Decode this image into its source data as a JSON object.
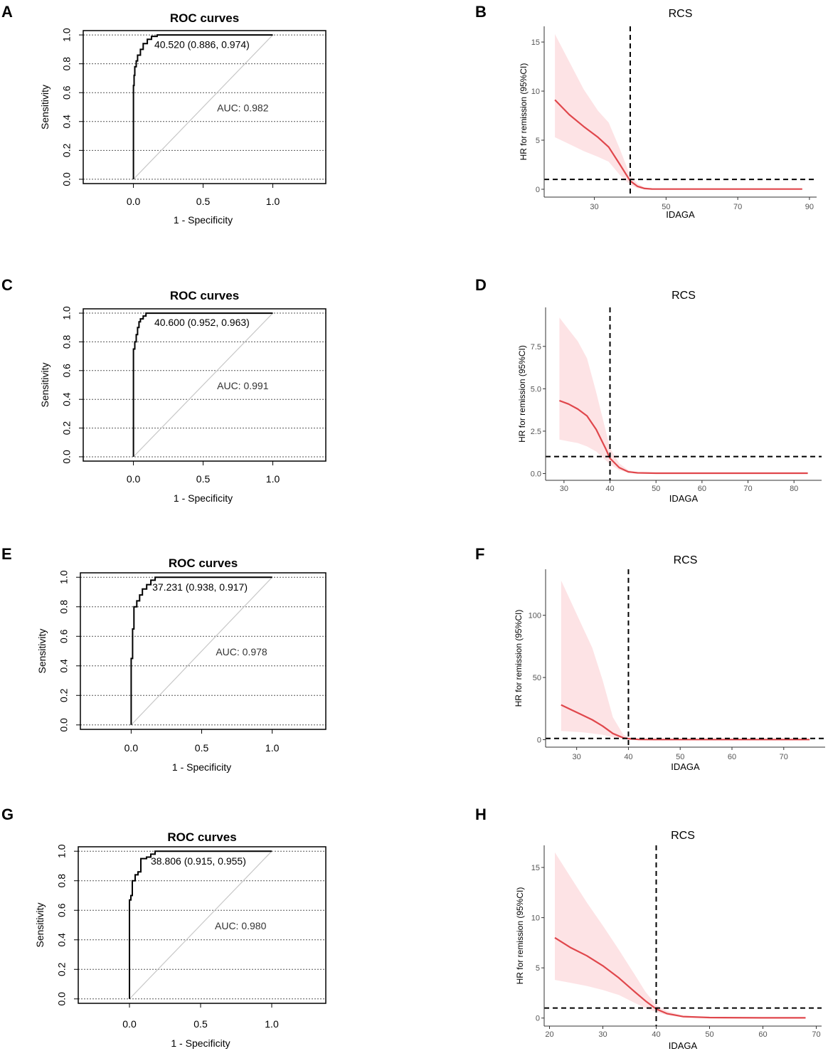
{
  "figure": {
    "panel_letters": [
      "A",
      "B",
      "C",
      "D",
      "E",
      "F",
      "G",
      "H"
    ]
  },
  "colors": {
    "roc_line": "#000000",
    "diagonal": "#c8c8c8",
    "grid": "#555555",
    "rcs_line": "#e0474c",
    "rcs_band": "#fde3e5",
    "rcs_axis_text": "#555555",
    "ref_line": "#000000"
  },
  "chart_data": [
    {
      "panel": "A",
      "type": "line",
      "subtype": "roc",
      "title": "ROC curves",
      "xlabel": "1 - Specificity",
      "ylabel": "Sensitivity",
      "xlim": [
        -0.36,
        1.38
      ],
      "ylim": [
        -0.03,
        1.03
      ],
      "x_ticks": [
        0.0,
        0.5,
        1.0
      ],
      "x_tick_labels": [
        "0.0",
        "0.5",
        "1.0"
      ],
      "y_ticks": [
        0.0,
        0.2,
        0.4,
        0.6,
        0.8,
        1.0
      ],
      "y_tick_labels": [
        "0.0",
        "0.2",
        "0.4",
        "0.6",
        "0.8",
        "1.0"
      ],
      "grid": "horizontal dotted",
      "curve": {
        "x": [
          0,
          0,
          0.005,
          0.005,
          0.01,
          0.01,
          0.02,
          0.02,
          0.03,
          0.03,
          0.05,
          0.05,
          0.07,
          0.07,
          0.1,
          0.1,
          0.13,
          0.13,
          0.17,
          0.17,
          1.0
        ],
        "y": [
          0,
          0.65,
          0.65,
          0.72,
          0.72,
          0.78,
          0.78,
          0.82,
          0.82,
          0.86,
          0.86,
          0.9,
          0.9,
          0.94,
          0.94,
          0.97,
          0.97,
          0.99,
          0.99,
          1.0,
          1.0
        ]
      },
      "cutoff_label": "40.520 (0.886, 0.974)",
      "auc_label": "AUC: 0.982"
    },
    {
      "panel": "B",
      "type": "line",
      "subtype": "rcs",
      "title": "RCS",
      "xlabel": "IDAGA",
      "ylabel": "HR for remission (95%CI)",
      "xlim": [
        16,
        92
      ],
      "ylim": [
        -0.8,
        16.6
      ],
      "x_ticks": [
        30,
        50,
        70,
        90
      ],
      "x_tick_labels": [
        "30",
        "50",
        "70",
        "90"
      ],
      "y_ticks": [
        0,
        5,
        10,
        15
      ],
      "y_tick_labels": [
        "0",
        "5",
        "10",
        "15"
      ],
      "x": [
        19,
        23,
        27,
        31,
        34,
        37,
        40,
        42,
        44,
        46,
        50,
        55,
        60,
        70,
        80,
        88
      ],
      "hr": [
        9.1,
        7.6,
        6.4,
        5.3,
        4.3,
        2.6,
        0.85,
        0.3,
        0.08,
        0.03,
        0.02,
        0.02,
        0.02,
        0.02,
        0.02,
        0.02
      ],
      "lower": [
        5.3,
        4.6,
        3.9,
        3.3,
        2.8,
        1.5,
        0.45,
        0.1,
        0.02,
        0.01,
        0.01,
        0.01,
        0.01,
        0.01,
        0.01,
        0.01
      ],
      "upper": [
        15.8,
        13.0,
        10.2,
        8.0,
        6.8,
        4.2,
        1.4,
        0.6,
        0.2,
        0.08,
        0.05,
        0.05,
        0.05,
        0.05,
        0.05,
        0.05
      ],
      "vline_x": 40,
      "hline_y": 1
    },
    {
      "panel": "C",
      "type": "line",
      "subtype": "roc",
      "title": "ROC curves",
      "xlabel": "1 - Specificity",
      "ylabel": "Sensitivity",
      "xlim": [
        -0.36,
        1.38
      ],
      "ylim": [
        -0.03,
        1.03
      ],
      "x_ticks": [
        0.0,
        0.5,
        1.0
      ],
      "x_tick_labels": [
        "0.0",
        "0.5",
        "1.0"
      ],
      "y_ticks": [
        0.0,
        0.2,
        0.4,
        0.6,
        0.8,
        1.0
      ],
      "y_tick_labels": [
        "0.0",
        "0.2",
        "0.4",
        "0.6",
        "0.8",
        "1.0"
      ],
      "grid": "horizontal dotted",
      "curve": {
        "x": [
          0,
          0,
          0.01,
          0.01,
          0.02,
          0.02,
          0.03,
          0.03,
          0.04,
          0.04,
          0.05,
          0.05,
          0.07,
          0.07,
          0.09,
          0.09,
          1.0
        ],
        "y": [
          0,
          0.75,
          0.75,
          0.8,
          0.8,
          0.85,
          0.85,
          0.9,
          0.9,
          0.94,
          0.94,
          0.96,
          0.96,
          0.98,
          0.98,
          1.0,
          1.0
        ]
      },
      "cutoff_label": "40.600 (0.952, 0.963)",
      "auc_label": "AUC: 0.991"
    },
    {
      "panel": "D",
      "type": "line",
      "subtype": "rcs",
      "title": "RCS",
      "xlabel": "IDAGA",
      "ylabel": "HR for remission (95%CI)",
      "xlim": [
        26,
        86
      ],
      "ylim": [
        -0.4,
        9.8
      ],
      "x_ticks": [
        30,
        40,
        50,
        60,
        70,
        80
      ],
      "x_tick_labels": [
        "30",
        "40",
        "50",
        "60",
        "70",
        "80"
      ],
      "y_ticks": [
        0,
        2.5,
        5,
        7.5
      ],
      "y_tick_labels": [
        "0.0",
        "2.5",
        "5.0",
        "7.5"
      ],
      "x": [
        29,
        31,
        33,
        35,
        37,
        39,
        40,
        42,
        44,
        46,
        50,
        60,
        70,
        80,
        83
      ],
      "hr": [
        4.3,
        4.1,
        3.8,
        3.4,
        2.6,
        1.5,
        0.9,
        0.35,
        0.1,
        0.04,
        0.02,
        0.02,
        0.02,
        0.02,
        0.02
      ],
      "lower": [
        2.0,
        1.9,
        1.8,
        1.6,
        1.3,
        0.8,
        0.55,
        0.2,
        0.05,
        0.02,
        0.01,
        0.01,
        0.01,
        0.01,
        0.01
      ],
      "upper": [
        9.2,
        8.5,
        7.8,
        6.8,
        4.8,
        2.6,
        1.5,
        0.6,
        0.2,
        0.08,
        0.05,
        0.05,
        0.05,
        0.05,
        0.05
      ],
      "vline_x": 40,
      "hline_y": 1
    },
    {
      "panel": "E",
      "type": "line",
      "subtype": "roc",
      "title": "ROC curves",
      "xlabel": "1 - Specificity",
      "ylabel": "Sensitivity",
      "xlim": [
        -0.36,
        1.38
      ],
      "ylim": [
        -0.03,
        1.03
      ],
      "x_ticks": [
        0.0,
        0.5,
        1.0
      ],
      "x_tick_labels": [
        "0.0",
        "0.5",
        "1.0"
      ],
      "y_ticks": [
        0.0,
        0.2,
        0.4,
        0.6,
        0.8,
        1.0
      ],
      "y_tick_labels": [
        "0.0",
        "0.2",
        "0.4",
        "0.6",
        "0.8",
        "1.0"
      ],
      "grid": "horizontal dotted",
      "curve": {
        "x": [
          0,
          0,
          0.01,
          0.01,
          0.02,
          0.02,
          0.04,
          0.04,
          0.06,
          0.06,
          0.08,
          0.08,
          0.11,
          0.11,
          0.14,
          0.14,
          0.17,
          0.17,
          1.0
        ],
        "y": [
          0,
          0.45,
          0.45,
          0.65,
          0.65,
          0.8,
          0.8,
          0.84,
          0.84,
          0.88,
          0.88,
          0.92,
          0.92,
          0.95,
          0.95,
          0.98,
          0.98,
          1.0,
          1.0
        ]
      },
      "cutoff_label": "37.231 (0.938, 0.917)",
      "auc_label": "AUC: 0.978"
    },
    {
      "panel": "F",
      "type": "line",
      "subtype": "rcs",
      "title": "RCS",
      "xlabel": "IDAGA",
      "ylabel": "HR for remission (95%CI)",
      "xlim": [
        24,
        78
      ],
      "ylim": [
        -6,
        137
      ],
      "x_ticks": [
        30,
        40,
        50,
        60,
        70
      ],
      "x_tick_labels": [
        "30",
        "40",
        "50",
        "60",
        "70"
      ],
      "y_ticks": [
        0,
        50,
        100
      ],
      "y_tick_labels": [
        "0",
        "50",
        "100"
      ],
      "x": [
        27,
        29,
        31,
        33,
        35,
        37,
        39,
        40,
        42,
        45,
        50,
        60,
        70,
        75
      ],
      "hr": [
        28,
        24,
        20,
        16,
        11,
        5,
        1.5,
        0.8,
        0.2,
        0.1,
        0.1,
        0.1,
        0.1,
        0.1
      ],
      "lower": [
        7,
        6.5,
        6,
        5,
        4,
        2,
        0.8,
        0.4,
        0.1,
        0.05,
        0.05,
        0.05,
        0.05,
        0.05
      ],
      "upper": [
        128,
        110,
        92,
        74,
        48,
        18,
        4,
        2,
        0.5,
        0.2,
        0.2,
        0.2,
        0.2,
        0.2
      ],
      "vline_x": 40,
      "hline_y": 1
    },
    {
      "panel": "G",
      "type": "line",
      "subtype": "roc",
      "title": "ROC curves",
      "xlabel": "1 - Specificity",
      "ylabel": "Sensitivity",
      "xlim": [
        -0.36,
        1.38
      ],
      "ylim": [
        -0.03,
        1.03
      ],
      "x_ticks": [
        0.0,
        0.5,
        1.0
      ],
      "x_tick_labels": [
        "0.0",
        "0.5",
        "1.0"
      ],
      "y_ticks": [
        0.0,
        0.2,
        0.4,
        0.6,
        0.8,
        1.0
      ],
      "y_tick_labels": [
        "0.0",
        "0.2",
        "0.4",
        "0.6",
        "0.8",
        "1.0"
      ],
      "grid": "horizontal dotted",
      "curve": {
        "x": [
          0,
          0,
          0.01,
          0.01,
          0.02,
          0.02,
          0.04,
          0.04,
          0.06,
          0.06,
          0.08,
          0.08,
          0.12,
          0.12,
          0.15,
          0.15,
          0.18,
          0.18,
          1.0
        ],
        "y": [
          0,
          0.67,
          0.67,
          0.7,
          0.7,
          0.8,
          0.8,
          0.84,
          0.84,
          0.86,
          0.86,
          0.95,
          0.95,
          0.96,
          0.96,
          0.98,
          0.98,
          1.0,
          1.0
        ]
      },
      "cutoff_label": "38.806 (0.915, 0.955)",
      "auc_label": "AUC: 0.980"
    },
    {
      "panel": "H",
      "type": "line",
      "subtype": "rcs",
      "title": "RCS",
      "xlabel": "IDAGA",
      "ylabel": "HR for remission (95%CI)",
      "xlim": [
        19,
        71
      ],
      "ylim": [
        -0.8,
        17.2
      ],
      "x_ticks": [
        20,
        30,
        40,
        50,
        60,
        70
      ],
      "x_tick_labels": [
        "20",
        "30",
        "40",
        "50",
        "60",
        "70"
      ],
      "y_ticks": [
        0,
        5,
        10,
        15
      ],
      "y_tick_labels": [
        "0",
        "5",
        "10",
        "15"
      ],
      "x": [
        21,
        24,
        27,
        30,
        33,
        36,
        38,
        40,
        42,
        45,
        50,
        60,
        68
      ],
      "hr": [
        8.0,
        7.0,
        6.2,
        5.2,
        4.0,
        2.6,
        1.7,
        0.9,
        0.45,
        0.15,
        0.05,
        0.02,
        0.02
      ],
      "lower": [
        3.8,
        3.5,
        3.2,
        2.8,
        2.3,
        1.5,
        1.0,
        0.6,
        0.3,
        0.08,
        0.03,
        0.01,
        0.01
      ],
      "upper": [
        16.5,
        14.0,
        11.5,
        9.2,
        6.8,
        4.3,
        2.6,
        1.3,
        0.7,
        0.25,
        0.08,
        0.04,
        0.04
      ],
      "vline_x": 40,
      "hline_y": 1
    }
  ]
}
